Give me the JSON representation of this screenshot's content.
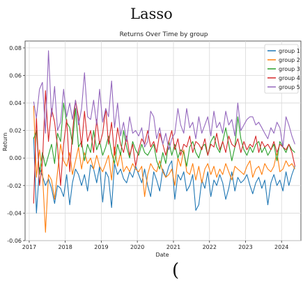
{
  "page": {
    "title": "Lasso",
    "footer_glyph": "("
  },
  "chart_data": {
    "type": "line",
    "title": "Returns Over Time by group",
    "xlabel": "Date",
    "ylabel": "Return",
    "xlim": [
      "2016-11-20",
      "2024-07-15"
    ],
    "ylim": [
      -0.06,
      0.085
    ],
    "x_ticks": [
      "2017",
      "2018",
      "2019",
      "2020",
      "2021",
      "2022",
      "2023",
      "2024"
    ],
    "y_ticks": [
      -0.06,
      -0.04,
      -0.02,
      0.0,
      0.02,
      0.04,
      0.06,
      0.08
    ],
    "y_tick_labels": [
      "-0.06",
      "-0.04",
      "-0.02",
      "0.00",
      "0.02",
      "0.04",
      "0.06",
      "0.08"
    ],
    "grid": true,
    "legend_position": "top-right",
    "series_colors": [
      "#1f77b4",
      "#ff7f0e",
      "#2ca02c",
      "#d62728",
      "#9467bd"
    ],
    "x": [
      "2017-02",
      "2017-03",
      "2017-04",
      "2017-05",
      "2017-06",
      "2017-07",
      "2017-08",
      "2017-09",
      "2017-10",
      "2017-11",
      "2017-12",
      "2018-01",
      "2018-02",
      "2018-03",
      "2018-04",
      "2018-05",
      "2018-06",
      "2018-07",
      "2018-08",
      "2018-09",
      "2018-10",
      "2018-11",
      "2018-12",
      "2019-01",
      "2019-02",
      "2019-03",
      "2019-04",
      "2019-05",
      "2019-06",
      "2019-07",
      "2019-08",
      "2019-09",
      "2019-10",
      "2019-11",
      "2019-12",
      "2020-01",
      "2020-02",
      "2020-03",
      "2020-04",
      "2020-05",
      "2020-06",
      "2020-07",
      "2020-08",
      "2020-09",
      "2020-10",
      "2020-11",
      "2020-12",
      "2021-01",
      "2021-02",
      "2021-03",
      "2021-04",
      "2021-05",
      "2021-06",
      "2021-07",
      "2021-08",
      "2021-09",
      "2021-10",
      "2021-11",
      "2021-12",
      "2022-01",
      "2022-02",
      "2022-03",
      "2022-04",
      "2022-05",
      "2022-06",
      "2022-07",
      "2022-08",
      "2022-09",
      "2022-10",
      "2022-11",
      "2022-12",
      "2023-01",
      "2023-02",
      "2023-03",
      "2023-04",
      "2023-05",
      "2023-06",
      "2023-07",
      "2023-08",
      "2023-09",
      "2023-10",
      "2023-11",
      "2023-12",
      "2024-01",
      "2024-02",
      "2024-03",
      "2024-04",
      "2024-05"
    ],
    "series": [
      {
        "name": "group 1",
        "values": [
          0.015,
          -0.04,
          -0.007,
          -0.013,
          -0.02,
          -0.015,
          -0.022,
          -0.033,
          -0.02,
          -0.022,
          -0.028,
          -0.012,
          -0.034,
          -0.018,
          -0.008,
          -0.012,
          -0.02,
          -0.012,
          -0.024,
          -0.005,
          -0.008,
          -0.018,
          -0.006,
          -0.032,
          -0.01,
          -0.014,
          -0.036,
          -0.004,
          -0.012,
          -0.008,
          -0.015,
          -0.018,
          -0.01,
          -0.014,
          -0.006,
          -0.012,
          -0.018,
          -0.008,
          -0.02,
          -0.028,
          -0.01,
          -0.016,
          -0.024,
          -0.008,
          -0.014,
          -0.006,
          -0.002,
          -0.03,
          -0.012,
          -0.016,
          -0.01,
          -0.024,
          -0.02,
          -0.012,
          -0.038,
          -0.034,
          -0.016,
          -0.022,
          -0.01,
          -0.028,
          -0.016,
          -0.02,
          -0.012,
          -0.018,
          -0.03,
          -0.022,
          -0.01,
          -0.024,
          -0.014,
          -0.018,
          -0.016,
          -0.012,
          -0.02,
          -0.026,
          -0.018,
          -0.014,
          -0.022,
          -0.016,
          -0.034,
          -0.018,
          -0.012,
          -0.02,
          -0.016,
          -0.024,
          -0.01,
          -0.02,
          -0.012,
          -0.006
        ]
      },
      {
        "name": "group 2",
        "values": [
          0.038,
          -0.014,
          0.006,
          -0.01,
          -0.054,
          -0.012,
          -0.016,
          -0.03,
          -0.01,
          0.01,
          -0.002,
          -0.006,
          0.004,
          -0.012,
          -0.002,
          0.008,
          -0.008,
          0.004,
          -0.004,
          0.0,
          -0.008,
          0.002,
          -0.006,
          -0.01,
          -0.004,
          0.002,
          -0.016,
          0.008,
          -0.006,
          0.004,
          -0.01,
          -0.006,
          -0.01,
          -0.004,
          -0.008,
          -0.01,
          -0.006,
          -0.028,
          -0.012,
          -0.004,
          -0.008,
          -0.01,
          -0.002,
          -0.01,
          -0.014,
          -0.012,
          -0.008,
          -0.02,
          0.0,
          -0.006,
          0.006,
          -0.01,
          -0.012,
          -0.004,
          -0.016,
          -0.006,
          -0.018,
          -0.008,
          -0.004,
          -0.012,
          -0.006,
          -0.014,
          -0.008,
          -0.012,
          -0.004,
          -0.01,
          -0.016,
          -0.006,
          -0.008,
          -0.01,
          -0.012,
          -0.006,
          -0.002,
          -0.014,
          -0.008,
          -0.006,
          -0.012,
          -0.004,
          -0.008,
          -0.01,
          -0.006,
          0.004,
          -0.01,
          -0.008,
          -0.002,
          -0.006,
          -0.004,
          -0.008
        ]
      },
      {
        "name": "group 3",
        "values": [
          0.014,
          0.02,
          -0.012,
          0.004,
          -0.006,
          0.002,
          0.01,
          -0.004,
          0.018,
          0.012,
          0.04,
          0.026,
          0.022,
          0.01,
          0.036,
          0.008,
          0.012,
          -0.002,
          0.01,
          0.004,
          0.02,
          0.006,
          0.012,
          0.002,
          0.008,
          0.016,
          0.004,
          -0.004,
          0.01,
          0.002,
          0.02,
          0.008,
          0.0,
          0.012,
          0.006,
          0.002,
          0.01,
          0.004,
          0.002,
          0.006,
          0.01,
          -0.002,
          -0.008,
          0.004,
          -0.004,
          0.012,
          0.002,
          0.01,
          0.0,
          0.006,
          0.004,
          -0.006,
          0.008,
          0.012,
          0.004,
          0.0,
          0.008,
          0.01,
          0.002,
          0.012,
          0.016,
          0.008,
          0.004,
          0.012,
          0.022,
          0.01,
          -0.002,
          0.008,
          0.03,
          0.014,
          0.006,
          0.002,
          0.008,
          0.004,
          0.01,
          0.012,
          0.004,
          0.008,
          0.002,
          0.006,
          0.01,
          -0.002,
          0.012,
          0.008,
          0.004,
          0.01,
          0.006,
          0.004
        ]
      },
      {
        "name": "group 4",
        "values": [
          -0.033,
          0.03,
          -0.02,
          -0.004,
          0.049,
          0.012,
          0.036,
          0.026,
          0.008,
          -0.02,
          0.01,
          0.028,
          -0.01,
          0.018,
          0.042,
          0.03,
          0.008,
          0.034,
          0.012,
          0.02,
          0.004,
          0.028,
          0.01,
          0.018,
          0.036,
          0.01,
          0.026,
          0.002,
          0.022,
          0.01,
          0.004,
          0.016,
          0.002,
          0.01,
          -0.006,
          0.006,
          0.014,
          0.01,
          0.02,
          0.008,
          0.012,
          0.004,
          0.018,
          0.01,
          0.002,
          0.012,
          0.02,
          0.006,
          0.014,
          0.002,
          0.01,
          0.008,
          0.016,
          0.004,
          0.012,
          0.01,
          0.006,
          0.014,
          0.002,
          0.01,
          0.008,
          0.018,
          0.006,
          0.012,
          0.004,
          0.016,
          0.01,
          0.008,
          0.014,
          0.004,
          0.012,
          0.006,
          0.01,
          0.008,
          0.016,
          0.004,
          0.012,
          0.008,
          0.01,
          0.006,
          0.012,
          0.004,
          0.01,
          0.008,
          0.006,
          0.01,
          0.004,
          -0.006
        ]
      },
      {
        "name": "group 5",
        "values": [
          0.041,
          0.029,
          0.05,
          0.055,
          0.018,
          0.078,
          0.03,
          0.052,
          0.02,
          0.026,
          0.05,
          0.03,
          0.04,
          0.028,
          0.042,
          0.024,
          0.036,
          0.062,
          0.03,
          0.028,
          0.042,
          0.024,
          0.05,
          0.026,
          0.036,
          0.03,
          0.056,
          0.022,
          0.04,
          0.016,
          0.026,
          0.012,
          0.03,
          0.018,
          0.02,
          0.016,
          0.022,
          0.008,
          0.012,
          0.034,
          0.03,
          0.014,
          0.022,
          0.01,
          0.018,
          0.006,
          0.014,
          0.018,
          0.036,
          0.024,
          0.018,
          0.036,
          0.022,
          0.026,
          0.014,
          0.03,
          0.018,
          0.024,
          0.03,
          0.016,
          0.034,
          0.022,
          0.026,
          0.018,
          0.034,
          0.024,
          0.028,
          0.016,
          0.04,
          0.02,
          0.024,
          0.028,
          0.03,
          0.03,
          0.024,
          0.026,
          0.022,
          0.018,
          0.014,
          0.022,
          0.018,
          0.026,
          0.022,
          0.008,
          0.03,
          0.024,
          0.016,
          0.01
        ]
      }
    ]
  }
}
